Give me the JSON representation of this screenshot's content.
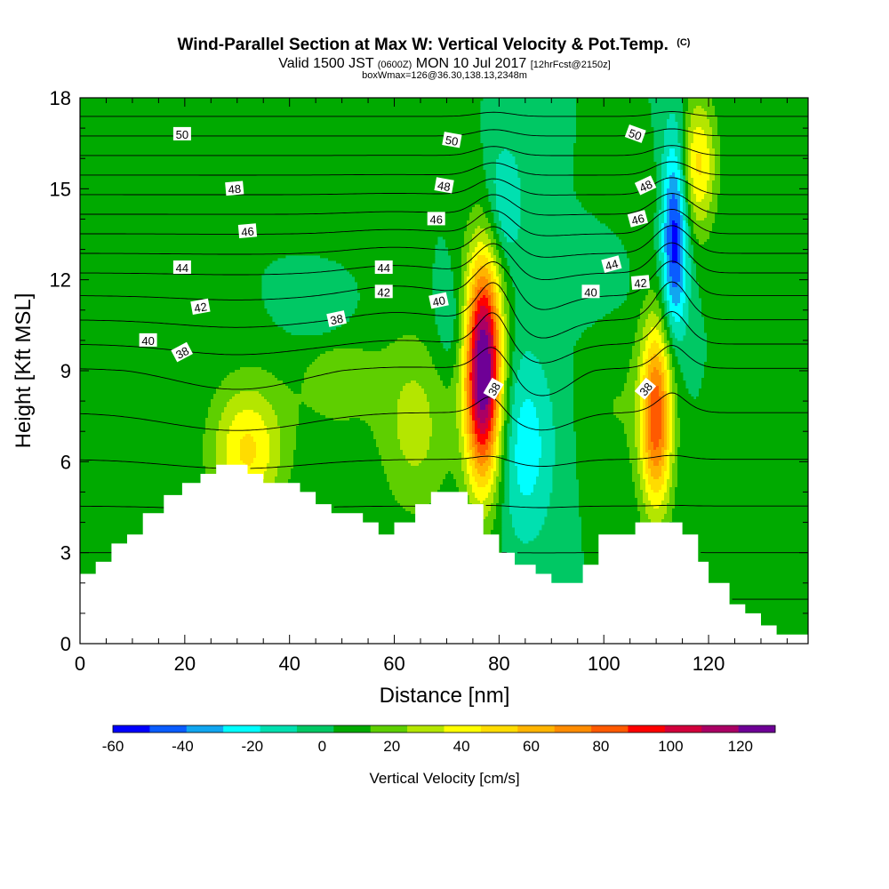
{
  "chart_data": {
    "type": "heatmap",
    "title": "Wind-Parallel Section at Max W: Vertical Velocity & Pot.Temp.",
    "title_mark": "(C)",
    "subtitle_parts": [
      "Valid 1500 JST ",
      "(0600Z)",
      " MON 10 Jul 2017 ",
      "[12hrFcst@2150z]"
    ],
    "subtitle2": "boxWmax=126@36.30,138.13,2348m",
    "xlabel": "Distance [nm]",
    "ylabel": "Height [Kft MSL]",
    "xlim": [
      0,
      139
    ],
    "ylim": [
      0,
      18
    ],
    "x_ticks": [
      "0",
      "20",
      "40",
      "60",
      "80",
      "100",
      "120"
    ],
    "x_tick_values": [
      0,
      20,
      40,
      60,
      80,
      100,
      120
    ],
    "y_ticks": [
      "0",
      "3",
      "6",
      "9",
      "12",
      "15",
      "18"
    ],
    "y_tick_values": [
      0,
      3,
      6,
      9,
      12,
      15,
      18
    ],
    "colorbar": {
      "label": "Vertical Velocity [cm/s]",
      "range": [
        -60,
        130
      ],
      "step": 10,
      "tick_labels": [
        "-60",
        "-40",
        "-20",
        "0",
        "20",
        "40",
        "60",
        "80",
        "100",
        "120"
      ],
      "tick_values": [
        -60,
        -40,
        -20,
        0,
        20,
        40,
        60,
        80,
        100,
        120
      ],
      "colors": [
        "#0000ff",
        "#0a5cff",
        "#11a6f0",
        "#00ffff",
        "#00e0b0",
        "#00c864",
        "#00aa00",
        "#5ecf00",
        "#b4e600",
        "#ffff00",
        "#ffdc00",
        "#ffb400",
        "#ff8c00",
        "#ff5a00",
        "#ff0000",
        "#d2003c",
        "#aa0064",
        "#6e0096"
      ]
    },
    "terrain": [
      [
        0,
        2.3
      ],
      [
        3,
        2.3
      ],
      [
        3,
        2.7
      ],
      [
        6,
        2.7
      ],
      [
        6,
        3.3
      ],
      [
        9,
        3.3
      ],
      [
        9,
        3.6
      ],
      [
        12,
        3.6
      ],
      [
        12,
        4.3
      ],
      [
        16,
        4.3
      ],
      [
        16,
        4.9
      ],
      [
        19.5,
        4.9
      ],
      [
        19.5,
        5.3
      ],
      [
        23,
        5.3
      ],
      [
        23,
        5.6
      ],
      [
        26,
        5.6
      ],
      [
        26,
        5.9
      ],
      [
        32,
        5.9
      ],
      [
        32,
        5.6
      ],
      [
        35,
        5.6
      ],
      [
        35,
        5.3
      ],
      [
        42,
        5.3
      ],
      [
        42,
        5.0
      ],
      [
        45,
        5.0
      ],
      [
        45,
        4.6
      ],
      [
        48,
        4.6
      ],
      [
        48,
        4.3
      ],
      [
        54,
        4.3
      ],
      [
        54,
        4.0
      ],
      [
        57,
        4.0
      ],
      [
        57,
        3.6
      ],
      [
        60,
        3.6
      ],
      [
        60,
        4.0
      ],
      [
        64,
        4.0
      ],
      [
        64,
        4.6
      ],
      [
        67,
        4.6
      ],
      [
        67,
        5.0
      ],
      [
        74,
        5.0
      ],
      [
        74,
        4.6
      ],
      [
        77,
        4.6
      ],
      [
        77,
        3.6
      ],
      [
        80,
        3.6
      ],
      [
        80,
        3.0
      ],
      [
        83,
        3.0
      ],
      [
        83,
        2.6
      ],
      [
        87,
        2.6
      ],
      [
        87,
        2.3
      ],
      [
        90,
        2.3
      ],
      [
        90,
        2.0
      ],
      [
        96,
        2.0
      ],
      [
        96,
        2.6
      ],
      [
        99,
        2.6
      ],
      [
        99,
        3.6
      ],
      [
        106,
        3.6
      ],
      [
        106,
        4.0
      ],
      [
        115,
        4.0
      ],
      [
        115,
        3.6
      ],
      [
        118,
        3.6
      ],
      [
        118,
        2.7
      ],
      [
        120,
        2.7
      ],
      [
        120,
        2.0
      ],
      [
        124,
        2.0
      ],
      [
        124,
        1.3
      ],
      [
        127,
        1.3
      ],
      [
        127,
        1.0
      ],
      [
        130,
        1.0
      ],
      [
        130,
        0.6
      ],
      [
        133,
        0.6
      ],
      [
        133,
        0.3
      ],
      [
        139,
        0.3
      ]
    ],
    "vertical_velocity_features": [
      {
        "x": 77,
        "y": 9.0,
        "sx": 2.5,
        "sy": 2.6,
        "w": 128
      },
      {
        "x": 110,
        "y": 7.5,
        "sx": 2.2,
        "sy": 2.2,
        "w": 78
      },
      {
        "x": 32,
        "y": 6.4,
        "sx": 5,
        "sy": 1.6,
        "w": 42
      },
      {
        "x": 64,
        "y": 7.2,
        "sx": 5,
        "sy": 2.2,
        "w": 24
      },
      {
        "x": 49,
        "y": 8.8,
        "sx": 6,
        "sy": 1.5,
        "w": 15
      },
      {
        "x": 8,
        "y": 4.2,
        "sx": 4,
        "sy": 1.2,
        "w": 10
      },
      {
        "x": 118,
        "y": 15.8,
        "sx": 2.5,
        "sy": 1.6,
        "w": 42
      },
      {
        "x": 112,
        "y": 14.6,
        "sx": 3,
        "sy": 1.4,
        "w": 8
      },
      {
        "x": 85,
        "y": 6.5,
        "sx": 4,
        "sy": 2.3,
        "w": -26
      },
      {
        "x": 113.5,
        "y": 13.6,
        "sx": 1.8,
        "sy": 2.3,
        "w": -62
      },
      {
        "x": 81,
        "y": 14.5,
        "sx": 2.5,
        "sy": 1.5,
        "w": -22
      },
      {
        "x": 46,
        "y": 10.9,
        "sx": 4.5,
        "sy": 0.7,
        "w": -14
      },
      {
        "x": 71,
        "y": 10.5,
        "sx": 2.5,
        "sy": 1.2,
        "w": -12
      },
      {
        "x": 102,
        "y": 7.8,
        "sx": 4,
        "sy": 2.0,
        "w": 10
      },
      {
        "x": 96,
        "y": 11.6,
        "sx": 6,
        "sy": 0.8,
        "w": -6
      },
      {
        "x": 128,
        "y": 4.0,
        "sx": 5,
        "sy": 2.0,
        "w": 5
      }
    ],
    "theta_contour_values": [
      31,
      32,
      33,
      34,
      35,
      36,
      37,
      38,
      39,
      40,
      41,
      42,
      43,
      44,
      45,
      46,
      47,
      48,
      49,
      50,
      51
    ],
    "theta_contour_labels": [
      {
        "text": "50",
        "x": 19.5,
        "y": 16.8,
        "angle": 0
      },
      {
        "text": "48",
        "x": 29.5,
        "y": 15.0,
        "angle": -5
      },
      {
        "text": "46",
        "x": 32,
        "y": 13.6,
        "angle": -5
      },
      {
        "text": "44",
        "x": 19.5,
        "y": 12.4,
        "angle": 0
      },
      {
        "text": "42",
        "x": 23,
        "y": 11.1,
        "angle": -10
      },
      {
        "text": "40",
        "x": 13,
        "y": 10.0,
        "angle": 0
      },
      {
        "text": "38",
        "x": 19.5,
        "y": 9.6,
        "angle": -28
      },
      {
        "text": "38",
        "x": 49,
        "y": 10.7,
        "angle": -12
      },
      {
        "text": "44",
        "x": 58,
        "y": 12.4,
        "angle": 0
      },
      {
        "text": "42",
        "x": 58,
        "y": 11.6,
        "angle": 0
      },
      {
        "text": "40",
        "x": 68.5,
        "y": 11.3,
        "angle": -12
      },
      {
        "text": "50",
        "x": 71,
        "y": 16.6,
        "angle": 10
      },
      {
        "text": "48",
        "x": 69.5,
        "y": 15.1,
        "angle": 10
      },
      {
        "text": "46",
        "x": 68,
        "y": 14.0,
        "angle": 0
      },
      {
        "text": "38",
        "x": 79,
        "y": 8.4,
        "angle": -60
      },
      {
        "text": "50",
        "x": 106,
        "y": 16.8,
        "angle": 20
      },
      {
        "text": "48",
        "x": 108,
        "y": 15.1,
        "angle": -25
      },
      {
        "text": "46",
        "x": 106.5,
        "y": 14.0,
        "angle": -15
      },
      {
        "text": "44",
        "x": 101.5,
        "y": 12.5,
        "angle": -15
      },
      {
        "text": "42",
        "x": 107,
        "y": 11.9,
        "angle": -5
      },
      {
        "text": "40",
        "x": 97.5,
        "y": 11.6,
        "angle": 0
      },
      {
        "text": "38",
        "x": 108,
        "y": 8.4,
        "angle": -50
      }
    ]
  }
}
